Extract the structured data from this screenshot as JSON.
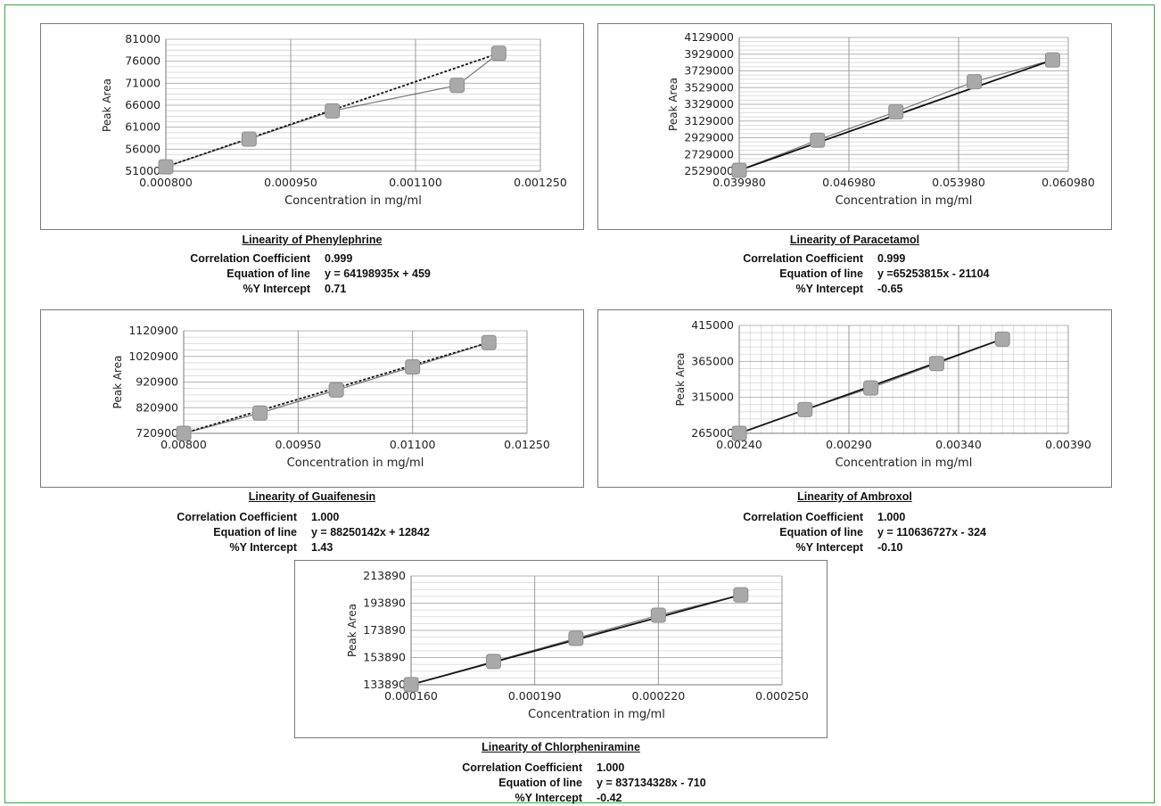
{
  "chart_data": [
    {
      "type": "scatter",
      "xlabel": "Concentration in mg/ml",
      "ylabel": "Peak Area",
      "x_ticks": [
        "0.000800",
        "0.000950",
        "0.001100",
        "0.001250"
      ],
      "y_ticks": [
        "51000",
        "56000",
        "61000",
        "66000",
        "71000",
        "76000",
        "81000"
      ],
      "xlim": [
        0.0008,
        0.00125
      ],
      "ylim": [
        51000,
        81000
      ],
      "grid": "horizontal-minor-and-vertical-major",
      "trendline": "dotted",
      "series": [
        {
          "x": [
            0.0008,
            0.0009,
            0.001,
            0.00115,
            0.0012
          ],
          "y": [
            52000,
            58300,
            64700,
            70500,
            77800
          ]
        }
      ],
      "caption": "Linearity of Phenylephrine",
      "stats": [
        {
          "label": "Correlation Coefficient",
          "value": "0.999"
        },
        {
          "label": "Equation of line",
          "value": "y = 64198935x + 459"
        },
        {
          "label": "%Y Intercept",
          "value": "0.71"
        }
      ]
    },
    {
      "type": "scatter",
      "xlabel": "Concentration in mg/ml",
      "ylabel": "Peak Area",
      "x_ticks": [
        "0.039980",
        "0.046980",
        "0.053980",
        "0.060980"
      ],
      "y_ticks": [
        "2529000",
        "2729000",
        "2929000",
        "3129000",
        "3329000",
        "3529000",
        "3729000",
        "3929000",
        "4129000"
      ],
      "xlim": [
        0.03998,
        0.06098
      ],
      "ylim": [
        2529000,
        4129000
      ],
      "grid": "horizontal-minor-and-vertical-major",
      "trendline": "solid",
      "series": [
        {
          "x": [
            0.03998,
            0.04498,
            0.04998,
            0.05498,
            0.05998
          ],
          "y": [
            2540000,
            2900000,
            3240000,
            3600000,
            3860000
          ]
        }
      ],
      "caption": "Linearity of Paracetamol",
      "stats": [
        {
          "label": "Correlation Coefficient",
          "value": "0.999"
        },
        {
          "label": "Equation of line",
          "value": "y =65253815x - 21104"
        },
        {
          "label": "%Y Intercept",
          "value": "-0.65"
        }
      ]
    },
    {
      "type": "scatter",
      "xlabel": "Concentration in mg/ml",
      "ylabel": "Peak Area",
      "x_ticks": [
        "0.00800",
        "0.00950",
        "0.01100",
        "0.01250"
      ],
      "y_ticks": [
        "720900",
        "820900",
        "920900",
        "1020900",
        "1120900"
      ],
      "xlim": [
        0.008,
        0.0125
      ],
      "ylim": [
        720900,
        1120900
      ],
      "grid": "horizontal-minor-and-vertical-major",
      "trendline": "dotted",
      "series": [
        {
          "x": [
            0.008,
            0.009,
            0.01,
            0.011,
            0.012
          ],
          "y": [
            720900,
            800000,
            890000,
            980000,
            1075000
          ]
        }
      ],
      "caption": "Linearity of Guaifenesin",
      "stats": [
        {
          "label": "Correlation Coefficient",
          "value": "1.000"
        },
        {
          "label": "Equation of line",
          "value": "y = 88250142x + 12842"
        },
        {
          "label": "%Y Intercept",
          "value": "1.43"
        }
      ]
    },
    {
      "type": "scatter",
      "xlabel": "Concentration in mg/ml",
      "ylabel": "Peak Area",
      "x_ticks": [
        "0.00240",
        "0.00290",
        "0.00340",
        "0.00390"
      ],
      "y_ticks": [
        "265000",
        "315000",
        "365000",
        "415000"
      ],
      "xlim": [
        0.0024,
        0.0039
      ],
      "ylim": [
        265000,
        415000
      ],
      "grid": "dense-both",
      "trendline": "solid",
      "series": [
        {
          "x": [
            0.0024,
            0.0027,
            0.003,
            0.0033,
            0.0036
          ],
          "y": [
            265000,
            298000,
            328000,
            362000,
            396000
          ]
        }
      ],
      "caption": "Linearity of Ambroxol",
      "stats": [
        {
          "label": "Correlation Coefficient",
          "value": "1.000"
        },
        {
          "label": "Equation of line",
          "value": "y = 110636727x - 324"
        },
        {
          "label": "%Y Intercept",
          "value": "-0.10"
        }
      ]
    },
    {
      "type": "scatter",
      "xlabel": "Concentration in mg/ml",
      "ylabel": "Peak Area",
      "x_ticks": [
        "0.000160",
        "0.000190",
        "0.000220",
        "0.000250"
      ],
      "y_ticks": [
        "133890",
        "153890",
        "173890",
        "193890",
        "213890"
      ],
      "xlim": [
        0.00016,
        0.00025
      ],
      "ylim": [
        133890,
        213890
      ],
      "grid": "horizontal-minor-and-vertical-major",
      "trendline": "solid",
      "series": [
        {
          "x": [
            0.00016,
            0.00018,
            0.0002,
            0.00022,
            0.00024
          ],
          "y": [
            134000,
            151000,
            168000,
            185000,
            200000
          ]
        }
      ],
      "caption": "Linearity of  Chlorpheniramine",
      "stats": [
        {
          "label": "Correlation Coefficient",
          "value": "1.000"
        },
        {
          "label": "Equation of line",
          "value": "y = 837134328x - 710"
        },
        {
          "label": "%Y Intercept",
          "value": "-0.42"
        }
      ]
    }
  ]
}
